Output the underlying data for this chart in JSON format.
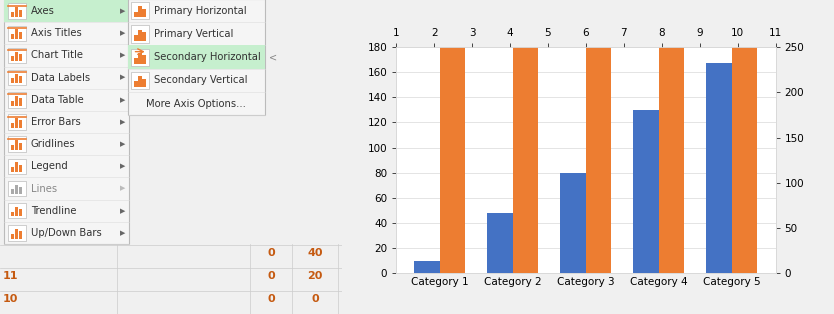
{
  "categories": [
    "Category 1",
    "Category 2",
    "Category 3",
    "Category 4",
    "Category 5"
  ],
  "blue_values": [
    10,
    48,
    80,
    130,
    167
  ],
  "orange_values": [
    180,
    180,
    180,
    180,
    180
  ],
  "blue_color": "#4472C4",
  "orange_color": "#ED7D31",
  "left_ylim": [
    0,
    180
  ],
  "right_ylim": [
    0,
    250
  ],
  "left_yticks": [
    0,
    20,
    40,
    60,
    80,
    100,
    120,
    140,
    160,
    180
  ],
  "right_yticks": [
    0,
    50,
    100,
    150,
    200,
    250
  ],
  "top_xtick_labels": [
    "1",
    "2",
    "3",
    "4",
    "5",
    "6",
    "7",
    "8",
    "9",
    "10",
    "11"
  ],
  "chart_bg": "#FFFFFF",
  "grid_color": "#D9D9D9",
  "fig_bg": "#F0F0F0",
  "menu_bg": "#F0F0F0",
  "menu_panel_bg": "#F5F5F5",
  "menu_border": "#BBBBBB",
  "highlight_green": "#C6EFCE",
  "menu_items": [
    "Axes",
    "Axis Titles",
    "Chart Title",
    "Data Labels",
    "Data Table",
    "Error Bars",
    "Gridlines",
    "Legend",
    "Lines",
    "Trendline",
    "Up/Down Bars"
  ],
  "submenu_items": [
    "Primary Horizontal",
    "Primary Vertical",
    "Secondary Horizontal",
    "Secondary Vertical",
    "More Axis Options..."
  ],
  "highlighted_menu": "Axes",
  "highlighted_submenu": "Secondary Horizontal",
  "disabled_items": [
    "Lines"
  ],
  "spreadsheet_bg": "#F0F0F0",
  "orange_text": "#C55A11",
  "row_nums": [
    "10",
    "11"
  ],
  "row_vals": [
    [
      "0",
      "0"
    ],
    [
      "0",
      "20"
    ]
  ],
  "row12_vals": [
    "0",
    "40"
  ]
}
